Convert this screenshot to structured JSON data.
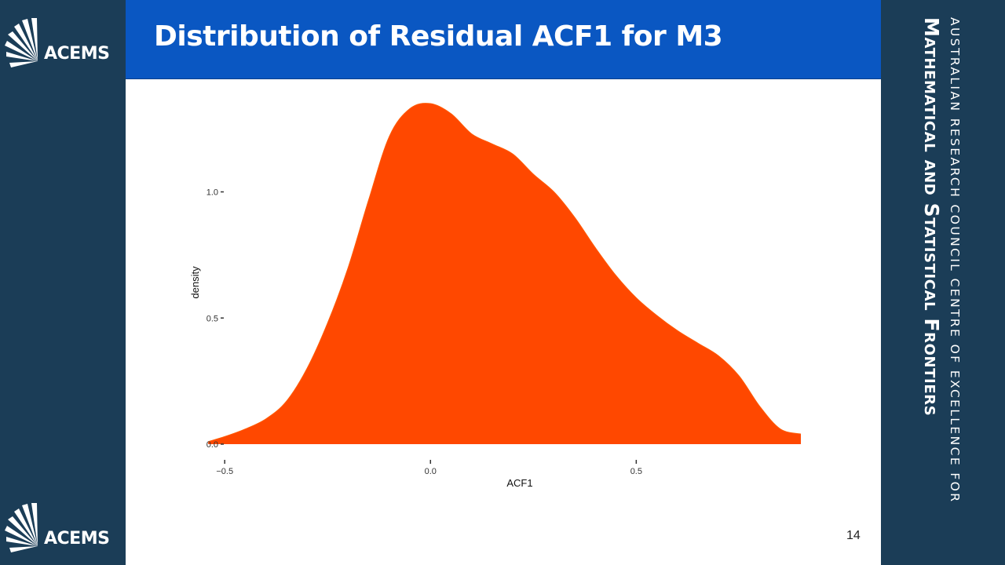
{
  "slide": {
    "title": "Distribution of Residual ACF1 for M3",
    "page_number": "14"
  },
  "logo": {
    "text": "ACEMS"
  },
  "side_banner": {
    "line1": "AUSTRALIAN RESEARCH COUNCIL CENTRE OF EXCELLENCE FOR",
    "line2": "Mathematical and Statistical Frontiers"
  },
  "colors": {
    "title_bar": "#0a57c2",
    "sidebar": "#1b3d57",
    "density_fill": "#ff4800"
  },
  "chart_data": {
    "type": "area",
    "title": "",
    "xlabel": "ACF1",
    "ylabel": "density",
    "xlim": [
      -0.55,
      0.9
    ],
    "ylim": [
      0,
      1.35
    ],
    "x_ticks": [
      -0.5,
      0.0,
      0.5
    ],
    "x_tick_labels": [
      "−0.5",
      "0.0",
      "0.5"
    ],
    "y_ticks": [
      0.0,
      0.5,
      1.0
    ],
    "y_tick_labels": [
      "0.0",
      "0.5",
      "1.0"
    ],
    "grid": false,
    "series": [
      {
        "name": "density",
        "x": [
          -0.54,
          -0.5,
          -0.45,
          -0.4,
          -0.35,
          -0.3,
          -0.25,
          -0.2,
          -0.15,
          -0.1,
          -0.05,
          0.0,
          0.05,
          0.1,
          0.15,
          0.2,
          0.25,
          0.3,
          0.35,
          0.4,
          0.45,
          0.5,
          0.55,
          0.6,
          0.65,
          0.7,
          0.75,
          0.8,
          0.85,
          0.9
        ],
        "y": [
          0.01,
          0.03,
          0.06,
          0.1,
          0.17,
          0.3,
          0.48,
          0.7,
          0.97,
          1.22,
          1.33,
          1.35,
          1.31,
          1.23,
          1.19,
          1.15,
          1.07,
          1.0,
          0.9,
          0.78,
          0.67,
          0.58,
          0.51,
          0.45,
          0.4,
          0.35,
          0.27,
          0.15,
          0.06,
          0.04
        ]
      }
    ]
  }
}
